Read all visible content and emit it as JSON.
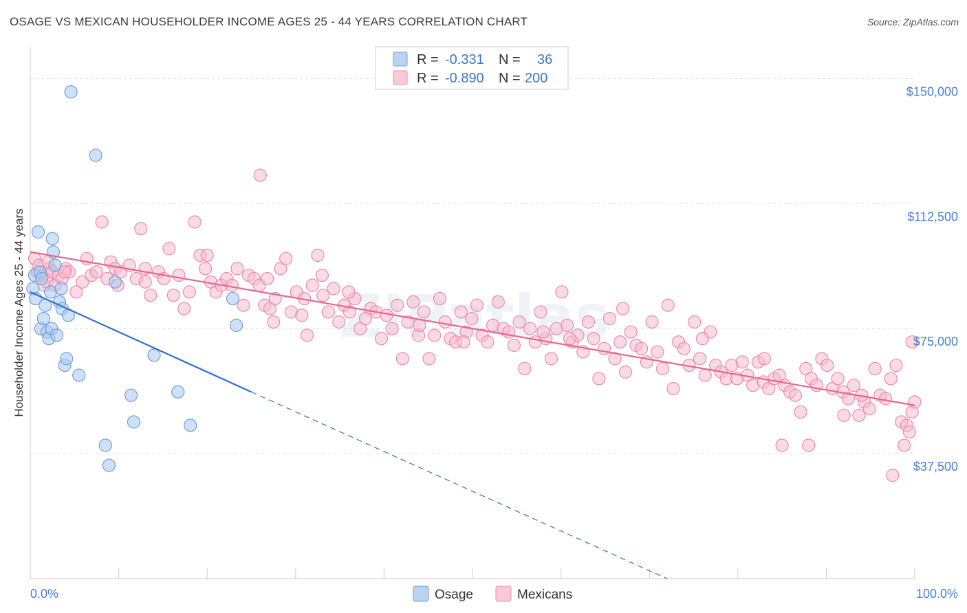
{
  "title": "OSAGE VS MEXICAN HOUSEHOLDER INCOME AGES 25 - 44 YEARS CORRELATION CHART",
  "source": "Source: ZipAtlas.com",
  "colors": {
    "osage": "#a8c8ee",
    "osage_stroke": "#6f9fdc",
    "osage_line": "#2f6fd0",
    "mexicans": "#f6bcd0",
    "mexicans_stroke": "#ec8aab",
    "mexicans_line": "#e8668f",
    "tick": "#4a7fd0",
    "grid": "#dddddd"
  },
  "chart_data": {
    "type": "scatter",
    "title": "OSAGE VS MEXICAN HOUSEHOLDER INCOME AGES 25 - 44 YEARS CORRELATION CHART",
    "xlabel": "",
    "ylabel": "Householder Income Ages 25 - 44 years",
    "xlim": [
      0,
      100
    ],
    "ylim": [
      0,
      157500
    ],
    "x_tick_labels": [
      "0.0%",
      "100.0%"
    ],
    "y_ticks": [
      37500,
      75000,
      112500,
      150000
    ],
    "y_tick_labels": [
      "$37,500",
      "$75,000",
      "$112,500",
      "$150,000"
    ],
    "grid": true,
    "legend_position": "top-center",
    "stats": [
      {
        "series": "Osage",
        "r_label": "R =",
        "r": "-0.331",
        "n_label": "N =",
        "n": "36"
      },
      {
        "series": "Mexicans",
        "r_label": "R =",
        "r": "-0.890",
        "n_label": "N =",
        "n": "200"
      }
    ],
    "series": [
      {
        "name": "Osage",
        "trend": {
          "x0": 0,
          "y0": 86000,
          "x1": 25,
          "y1": 56000,
          "dashed_to_x": 72,
          "dashed_to_y": 0
        },
        "points": [
          [
            0.3,
            87000
          ],
          [
            0.5,
            91000
          ],
          [
            0.6,
            84000
          ],
          [
            0.9,
            104000
          ],
          [
            1.1,
            92000
          ],
          [
            1.2,
            75000
          ],
          [
            1.3,
            90000
          ],
          [
            1.5,
            78000
          ],
          [
            1.7,
            82000
          ],
          [
            1.9,
            74000
          ],
          [
            2.1,
            72000
          ],
          [
            2.3,
            86000
          ],
          [
            2.4,
            75000
          ],
          [
            2.5,
            102000
          ],
          [
            2.6,
            98000
          ],
          [
            2.8,
            94000
          ],
          [
            3.0,
            73000
          ],
          [
            3.3,
            83000
          ],
          [
            3.5,
            87000
          ],
          [
            3.6,
            81000
          ],
          [
            3.9,
            64000
          ],
          [
            4.1,
            66000
          ],
          [
            4.3,
            79000
          ],
          [
            5.5,
            61000
          ],
          [
            4.6,
            146000
          ],
          [
            7.4,
            127000
          ],
          [
            8.5,
            40000
          ],
          [
            8.9,
            34000
          ],
          [
            9.6,
            89000
          ],
          [
            11.4,
            55000
          ],
          [
            11.7,
            47000
          ],
          [
            14.0,
            67000
          ],
          [
            16.7,
            56000
          ],
          [
            18.1,
            46000
          ],
          [
            22.9,
            84000
          ],
          [
            23.3,
            76000
          ]
        ]
      },
      {
        "name": "Mexicans",
        "trend": {
          "x0": 0,
          "y0": 98000,
          "x1": 100,
          "y1": 52000
        },
        "points": [
          [
            0.5,
            96000
          ],
          [
            0.8,
            92000
          ],
          [
            1.0,
            94000
          ],
          [
            1.3,
            91000
          ],
          [
            1.6,
            88000
          ],
          [
            1.9,
            89000
          ],
          [
            2.2,
            93000
          ],
          [
            2.5,
            92000
          ],
          [
            2.8,
            88000
          ],
          [
            3.2,
            91000
          ],
          [
            3.6,
            90000
          ],
          [
            4.0,
            93000
          ],
          [
            4.4,
            92000
          ],
          [
            5.2,
            86000
          ],
          [
            5.9,
            89000
          ],
          [
            6.4,
            96000
          ],
          [
            6.9,
            91000
          ],
          [
            7.5,
            92000
          ],
          [
            8.1,
            107000
          ],
          [
            8.7,
            90000
          ],
          [
            9.1,
            95000
          ],
          [
            9.6,
            93000
          ],
          [
            10.2,
            92000
          ],
          [
            11.2,
            94000
          ],
          [
            12.0,
            90000
          ],
          [
            12.5,
            105000
          ],
          [
            13.0,
            93000
          ],
          [
            13.6,
            85000
          ],
          [
            14.5,
            92000
          ],
          [
            15.1,
            90000
          ],
          [
            15.7,
            99000
          ],
          [
            16.2,
            85000
          ],
          [
            16.8,
            91000
          ],
          [
            17.4,
            81000
          ],
          [
            18.0,
            86000
          ],
          [
            18.6,
            107000
          ],
          [
            19.2,
            97000
          ],
          [
            19.8,
            93000
          ],
          [
            20.4,
            89000
          ],
          [
            21.0,
            86000
          ],
          [
            21.6,
            88000
          ],
          [
            22.2,
            90000
          ],
          [
            22.8,
            88000
          ],
          [
            23.4,
            93000
          ],
          [
            24.1,
            82000
          ],
          [
            24.7,
            91000
          ],
          [
            25.3,
            90000
          ],
          [
            25.9,
            88000
          ],
          [
            26.0,
            121000
          ],
          [
            26.5,
            82000
          ],
          [
            27.1,
            81000
          ],
          [
            27.7,
            84000
          ],
          [
            28.3,
            93000
          ],
          [
            28.9,
            96000
          ],
          [
            29.5,
            80000
          ],
          [
            30.1,
            86000
          ],
          [
            30.7,
            79000
          ],
          [
            31.3,
            73000
          ],
          [
            31.9,
            88000
          ],
          [
            32.5,
            97000
          ],
          [
            33.1,
            85000
          ],
          [
            33.7,
            80000
          ],
          [
            34.3,
            87000
          ],
          [
            34.9,
            77000
          ],
          [
            35.5,
            82000
          ],
          [
            36.1,
            80000
          ],
          [
            36.7,
            84000
          ],
          [
            37.3,
            75000
          ],
          [
            37.9,
            78000
          ],
          [
            38.5,
            81000
          ],
          [
            39.1,
            80000
          ],
          [
            39.7,
            72000
          ],
          [
            40.3,
            79000
          ],
          [
            40.9,
            75000
          ],
          [
            41.5,
            82000
          ],
          [
            42.1,
            66000
          ],
          [
            42.7,
            77000
          ],
          [
            43.3,
            83000
          ],
          [
            43.9,
            73000
          ],
          [
            44.5,
            80000
          ],
          [
            45.1,
            66000
          ],
          [
            45.7,
            73000
          ],
          [
            46.3,
            84000
          ],
          [
            46.9,
            77000
          ],
          [
            47.5,
            72000
          ],
          [
            48.1,
            71000
          ],
          [
            48.7,
            80000
          ],
          [
            49.3,
            74000
          ],
          [
            49.9,
            78000
          ],
          [
            50.5,
            82000
          ],
          [
            51.1,
            73000
          ],
          [
            51.7,
            71000
          ],
          [
            52.3,
            76000
          ],
          [
            52.9,
            83000
          ],
          [
            53.5,
            75000
          ],
          [
            54.1,
            74000
          ],
          [
            54.7,
            70000
          ],
          [
            55.3,
            77000
          ],
          [
            55.9,
            63000
          ],
          [
            56.5,
            75000
          ],
          [
            57.1,
            71000
          ],
          [
            57.7,
            80000
          ],
          [
            58.3,
            72000
          ],
          [
            58.9,
            66000
          ],
          [
            59.5,
            75000
          ],
          [
            60.1,
            86000
          ],
          [
            60.7,
            76000
          ],
          [
            61.3,
            71000
          ],
          [
            61.9,
            73000
          ],
          [
            62.5,
            68000
          ],
          [
            63.1,
            77000
          ],
          [
            63.7,
            72000
          ],
          [
            64.3,
            60000
          ],
          [
            64.9,
            69000
          ],
          [
            65.5,
            78000
          ],
          [
            66.1,
            66000
          ],
          [
            66.7,
            71000
          ],
          [
            67.3,
            62000
          ],
          [
            67.9,
            74000
          ],
          [
            68.5,
            70000
          ],
          [
            69.1,
            69000
          ],
          [
            69.7,
            65000
          ],
          [
            70.3,
            77000
          ],
          [
            70.9,
            68000
          ],
          [
            71.5,
            63000
          ],
          [
            72.1,
            82000
          ],
          [
            72.7,
            57000
          ],
          [
            73.3,
            71000
          ],
          [
            73.9,
            69000
          ],
          [
            74.5,
            64000
          ],
          [
            75.1,
            77000
          ],
          [
            75.7,
            66000
          ],
          [
            76.3,
            61000
          ],
          [
            76.9,
            74000
          ],
          [
            77.5,
            64000
          ],
          [
            78.1,
            62000
          ],
          [
            78.7,
            60000
          ],
          [
            79.3,
            64000
          ],
          [
            79.9,
            60000
          ],
          [
            80.5,
            65000
          ],
          [
            81.1,
            61000
          ],
          [
            81.7,
            58000
          ],
          [
            82.3,
            65000
          ],
          [
            82.9,
            59000
          ],
          [
            83.5,
            57000
          ],
          [
            84.1,
            60000
          ],
          [
            84.7,
            61000
          ],
          [
            85.3,
            58000
          ],
          [
            85.9,
            56000
          ],
          [
            86.5,
            55000
          ],
          [
            87.1,
            50000
          ],
          [
            87.7,
            63000
          ],
          [
            88.3,
            60000
          ],
          [
            88.9,
            58000
          ],
          [
            89.5,
            66000
          ],
          [
            90.1,
            64000
          ],
          [
            90.7,
            57000
          ],
          [
            91.3,
            60000
          ],
          [
            91.9,
            56000
          ],
          [
            92.5,
            54000
          ],
          [
            93.1,
            58000
          ],
          [
            93.7,
            49000
          ],
          [
            94.3,
            53000
          ],
          [
            94.9,
            51000
          ],
          [
            95.5,
            63000
          ],
          [
            96.1,
            55000
          ],
          [
            96.7,
            54000
          ],
          [
            97.3,
            60000
          ],
          [
            97.9,
            64000
          ],
          [
            98.5,
            47000
          ],
          [
            99.1,
            46000
          ],
          [
            99.7,
            50000
          ],
          [
            100.0,
            53000
          ],
          [
            98.8,
            40000
          ],
          [
            99.4,
            44000
          ],
          [
            97.5,
            31000
          ],
          [
            99.7,
            71000
          ],
          [
            85.0,
            40000
          ],
          [
            88.0,
            40000
          ],
          [
            27.5,
            77000
          ],
          [
            20.0,
            97000
          ],
          [
            9.9,
            88000
          ],
          [
            3.9,
            92000
          ],
          [
            2.0,
            95000
          ],
          [
            31.0,
            84000
          ],
          [
            26.8,
            90000
          ],
          [
            61.0,
            72000
          ],
          [
            92.0,
            49000
          ],
          [
            94.0,
            55000
          ],
          [
            83.0,
            66000
          ],
          [
            76.0,
            72000
          ],
          [
            67.0,
            81000
          ],
          [
            58.0,
            74000
          ],
          [
            49.0,
            71000
          ],
          [
            44.0,
            76000
          ],
          [
            36.0,
            86000
          ],
          [
            33.0,
            91000
          ],
          [
            13.0,
            89000
          ]
        ]
      }
    ]
  },
  "legend_bottom": [
    {
      "label": "Osage"
    },
    {
      "label": "Mexicans"
    }
  ],
  "watermark": "ZIPatlas"
}
